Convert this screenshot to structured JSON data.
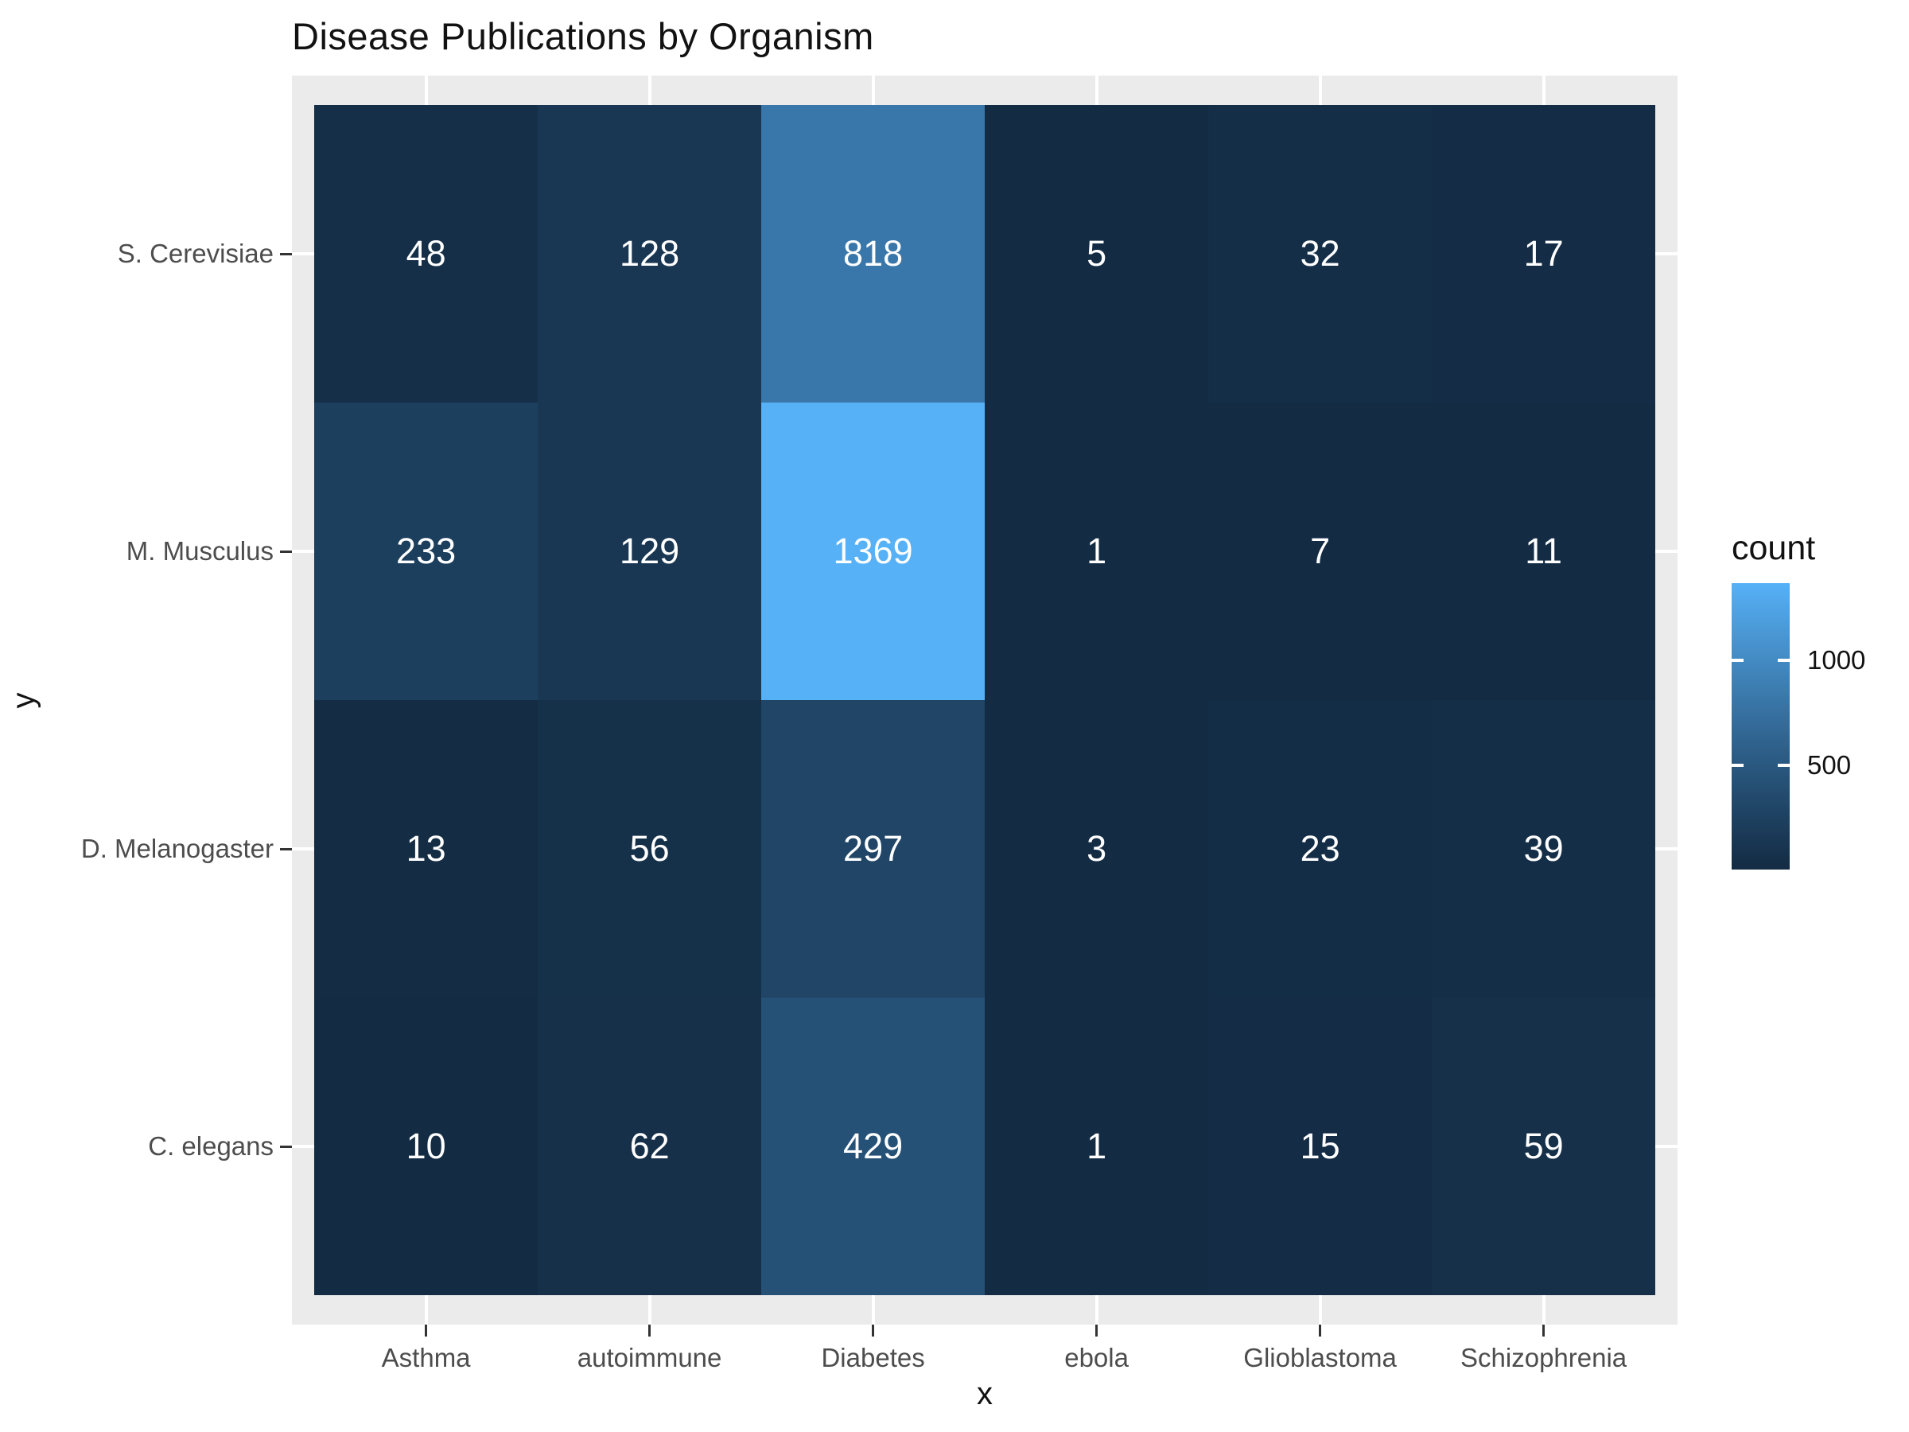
{
  "title": "Disease Publications by Organism",
  "axes": {
    "x_title": "x",
    "y_title": "y"
  },
  "legend": {
    "title": "count",
    "tick_labels": [
      "1000",
      "500"
    ],
    "tick_values": [
      1000,
      500
    ]
  },
  "colors": {
    "panel_background": "#EBEBEB",
    "gridline": "#ffffff",
    "tick_mark": "#333333",
    "axis_text": "#4D4D4D",
    "text": "#121212",
    "cell_text": "#ffffff",
    "scale_low": "#132B43",
    "scale_high": "#56B1F7"
  },
  "chart_data": {
    "type": "heatmap",
    "title": "Disease Publications by Organism",
    "xlabel": "x",
    "ylabel": "y",
    "x_categories": [
      "Asthma",
      "autoimmune",
      "Diabetes",
      "ebola",
      "Glioblastoma",
      "Schizophrenia"
    ],
    "y_categories_top_to_bottom": [
      "S. Cerevisiae",
      "M. Musculus",
      "D. Melanogaster",
      "C. elegans"
    ],
    "series": [
      {
        "name": "S. Cerevisiae",
        "values": [
          48,
          128,
          818,
          5,
          32,
          17
        ]
      },
      {
        "name": "M. Musculus",
        "values": [
          233,
          129,
          1369,
          1,
          7,
          11
        ]
      },
      {
        "name": "D. Melanogaster",
        "values": [
          13,
          56,
          297,
          3,
          23,
          39
        ]
      },
      {
        "name": "C. elegans",
        "values": [
          10,
          62,
          429,
          1,
          15,
          59
        ]
      }
    ],
    "color_scale": {
      "name": "count",
      "low": "#132B43",
      "high": "#56B1F7",
      "domain": [
        1,
        1369
      ],
      "interpolation_space": "lab",
      "legend_ticks": [
        500,
        1000
      ],
      "legend_position": "right"
    },
    "grid": "major-white-on-grey",
    "legend_position": "right"
  }
}
